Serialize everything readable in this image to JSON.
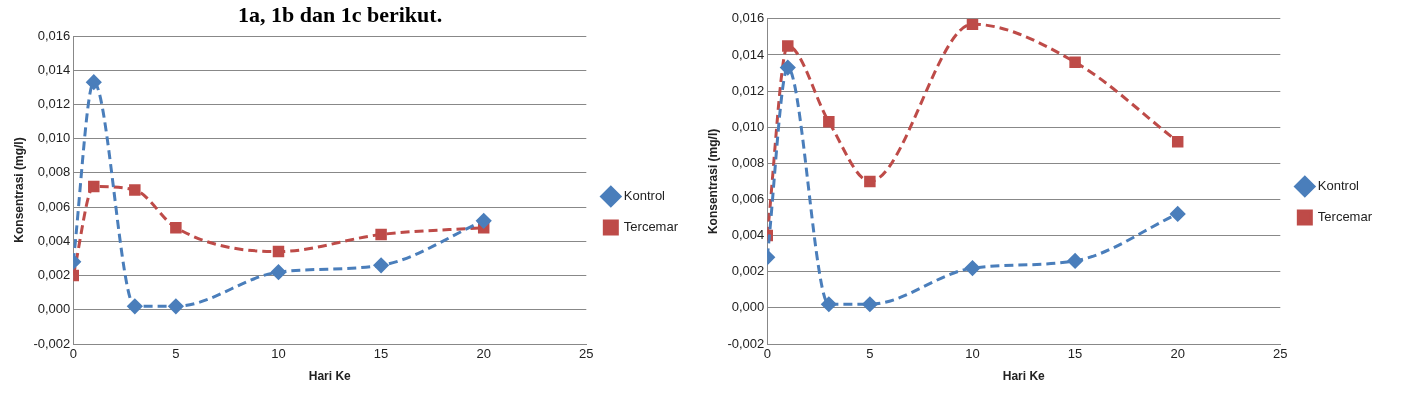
{
  "chart_data": [
    {
      "type": "line",
      "annotations": [
        "1a, 1b dan 1c berikut."
      ],
      "xlabel": "Hari Ke",
      "ylabel": "Konsentrasi (mg/l)",
      "x": [
        0,
        1,
        3,
        5,
        10,
        15,
        20
      ],
      "series": [
        {
          "name": "Kontrol",
          "color": "#4a7ebb",
          "marker": "diamond",
          "line_style": "dashed",
          "values": [
            0.0028,
            0.0133,
            0.0002,
            0.0002,
            0.0022,
            0.0026,
            0.0052
          ]
        },
        {
          "name": "Tercemar",
          "color": "#be4b48",
          "marker": "square",
          "line_style": "dashed",
          "values": [
            0.002,
            0.0072,
            0.007,
            0.0048,
            0.0034,
            0.0044,
            0.0048
          ]
        }
      ],
      "xlim": [
        0,
        25
      ],
      "xticks": [
        0,
        5,
        10,
        15,
        20,
        25
      ],
      "ylim": [
        -0.002,
        0.016
      ],
      "yticks": [
        {
          "value": -0.002,
          "label": "-0,002"
        },
        {
          "value": 0,
          "label": "0,000"
        },
        {
          "value": 0.002,
          "label": "0,002"
        },
        {
          "value": 0.004,
          "label": "0,004"
        },
        {
          "value": 0.006,
          "label": "0,006"
        },
        {
          "value": 0.008,
          "label": "0,008"
        },
        {
          "value": 0.01,
          "label": "0,010"
        },
        {
          "value": 0.012,
          "label": "0,012"
        },
        {
          "value": 0.014,
          "label": "0,014"
        },
        {
          "value": 0.016,
          "label": "0,016"
        }
      ],
      "grid": "y",
      "legend": "right"
    },
    {
      "type": "line",
      "xlabel": "Hari Ke",
      "ylabel": "Konsentrasi (mg/l)",
      "x": [
        0,
        1,
        3,
        5,
        10,
        15,
        20
      ],
      "series": [
        {
          "name": "Kontrol",
          "color": "#4a7ebb",
          "marker": "diamond",
          "line_style": "dashed",
          "values": [
            0.0028,
            0.0133,
            0.0002,
            0.0002,
            0.0022,
            0.0026,
            0.0052
          ]
        },
        {
          "name": "Tercemar",
          "color": "#be4b48",
          "marker": "square",
          "line_style": "dashed",
          "values": [
            0.004,
            0.0145,
            0.0103,
            0.007,
            0.0157,
            0.0136,
            0.0092
          ]
        }
      ],
      "xlim": [
        0,
        25
      ],
      "xticks": [
        0,
        5,
        10,
        15,
        20,
        25
      ],
      "ylim": [
        -0.002,
        0.016
      ],
      "yticks": [
        {
          "value": -0.002,
          "label": "-0,002"
        },
        {
          "value": 0,
          "label": "0,000"
        },
        {
          "value": 0.002,
          "label": "0,002"
        },
        {
          "value": 0.004,
          "label": "0,004"
        },
        {
          "value": 0.006,
          "label": "0,006"
        },
        {
          "value": 0.008,
          "label": "0,008"
        },
        {
          "value": 0.01,
          "label": "0,010"
        },
        {
          "value": 0.012,
          "label": "0,012"
        },
        {
          "value": 0.014,
          "label": "0,014"
        },
        {
          "value": 0.016,
          "label": "0,016"
        }
      ],
      "grid": "y",
      "legend": "right"
    }
  ]
}
